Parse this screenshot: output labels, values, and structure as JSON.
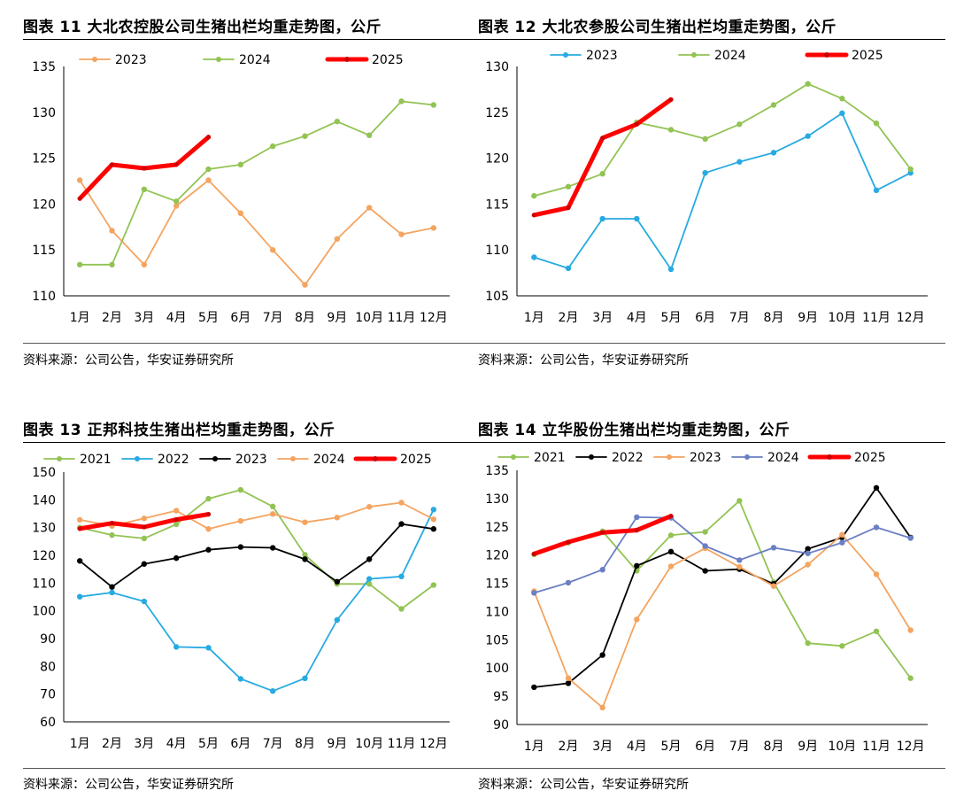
{
  "charts": [
    {
      "title": "图表 11 大北农控股公司生猪出栏均重走势图，公斤",
      "source": "资料来源：公司公告，华安证券研究所",
      "chart_data": {
        "type": "line",
        "categories": [
          "1月",
          "2月",
          "3月",
          "4月",
          "5月",
          "6月",
          "7月",
          "8月",
          "9月",
          "10月",
          "11月",
          "12月"
        ],
        "ylim": [
          110,
          135
        ],
        "ystep": 5,
        "series": [
          {
            "name": "2023",
            "color": "#f4a460",
            "bold": false,
            "values": [
              122.6,
              117.1,
              113.4,
              119.8,
              122.6,
              119.0,
              115.0,
              111.2,
              116.2,
              119.6,
              116.7,
              117.4
            ]
          },
          {
            "name": "2024",
            "color": "#92c353",
            "bold": false,
            "values": [
              113.4,
              113.4,
              121.6,
              120.3,
              123.8,
              124.3,
              126.3,
              127.4,
              129.0,
              127.5,
              131.2,
              130.8
            ]
          },
          {
            "name": "2025",
            "color": "#ff0000",
            "bold": true,
            "values": [
              120.6,
              124.3,
              123.9,
              124.3,
              127.3,
              null,
              null,
              null,
              null,
              null,
              null,
              null
            ]
          }
        ]
      }
    },
    {
      "title": "图表 12 大北农参股公司生猪出栏均重走势图，公斤",
      "source": "资料来源：公司公告，华安证券研究所",
      "chart_data": {
        "type": "line",
        "categories": [
          "1月",
          "2月",
          "3月",
          "4月",
          "5月",
          "6月",
          "7月",
          "8月",
          "9月",
          "10月",
          "11月",
          "12月"
        ],
        "ylim": [
          105,
          130
        ],
        "ystep": 5,
        "series": [
          {
            "name": "2023",
            "color": "#27aae1",
            "bold": false,
            "values": [
              109.2,
              108.0,
              113.4,
              113.4,
              107.9,
              118.4,
              119.6,
              120.6,
              122.4,
              124.9,
              116.5,
              118.4
            ]
          },
          {
            "name": "2024",
            "color": "#92c353",
            "bold": false,
            "values": [
              115.9,
              116.9,
              118.3,
              123.9,
              123.1,
              122.1,
              123.7,
              125.8,
              128.1,
              126.5,
              123.8,
              118.8
            ]
          },
          {
            "name": "2025",
            "color": "#ff0000",
            "bold": true,
            "values": [
              113.8,
              114.6,
              122.2,
              123.7,
              126.4,
              null,
              null,
              null,
              null,
              null,
              null,
              null
            ]
          }
        ]
      }
    },
    {
      "title": "图表 13 正邦科技生猪出栏均重走势图，公斤",
      "source": "资料来源：公司公告，华安证券研究所",
      "chart_data": {
        "type": "line",
        "categories": [
          "1月",
          "2月",
          "3月",
          "4月",
          "5月",
          "6月",
          "7月",
          "8月",
          "9月",
          "10月",
          "11月",
          "12月"
        ],
        "ylim": [
          60,
          150
        ],
        "ystep": 10,
        "series": [
          {
            "name": "2021",
            "color": "#92c353",
            "bold": false,
            "values": [
              130.0,
              127.3,
              126.1,
              131.2,
              140.4,
              143.6,
              137.6,
              120.2,
              109.7,
              109.7,
              100.7,
              109.3
            ]
          },
          {
            "name": "2022",
            "color": "#27aae1",
            "bold": false,
            "values": [
              105.1,
              106.6,
              103.4,
              87.0,
              86.7,
              75.5,
              71.1,
              75.7,
              96.7,
              111.5,
              112.4,
              136.5
            ]
          },
          {
            "name": "2023",
            "color": "#000000",
            "bold": false,
            "values": [
              118.0,
              108.6,
              116.9,
              119.0,
              122.0,
              123.0,
              122.7,
              118.6,
              110.5,
              118.6,
              131.3,
              129.5
            ]
          },
          {
            "name": "2024",
            "color": "#f4a460",
            "bold": false,
            "values": [
              132.8,
              130.6,
              133.3,
              136.1,
              129.5,
              132.4,
              134.9,
              131.9,
              133.6,
              137.5,
              139.0,
              133.0
            ]
          },
          {
            "name": "2025",
            "color": "#ff0000",
            "bold": true,
            "values": [
              129.6,
              131.6,
              130.2,
              132.9,
              134.8,
              null,
              null,
              null,
              null,
              null,
              null,
              null
            ]
          }
        ]
      }
    },
    {
      "title": "图表 14 立华股份生猪出栏均重走势图，公斤",
      "source": "资料来源：公司公告，华安证券研究所",
      "chart_data": {
        "type": "line",
        "categories": [
          "1月",
          "2月",
          "3月",
          "4月",
          "5月",
          "6月",
          "7月",
          "8月",
          "9月",
          "10月",
          "11月",
          "12月"
        ],
        "ylim": [
          90,
          135
        ],
        "ystep": 5,
        "series": [
          {
            "name": "2021",
            "color": "#92c353",
            "bold": false,
            "values": [
              120.1,
              122.2,
              124.2,
              117.2,
              123.5,
              124.1,
              129.6,
              115.2,
              104.4,
              103.9,
              106.5,
              98.2
            ]
          },
          {
            "name": "2022",
            "color": "#000000",
            "bold": false,
            "values": [
              96.6,
              97.3,
              102.3,
              118.1,
              120.6,
              117.2,
              117.5,
              114.9,
              121.1,
              123.1,
              131.9,
              123.1
            ]
          },
          {
            "name": "2023",
            "color": "#f4a460",
            "bold": false,
            "values": [
              113.6,
              98.2,
              93.0,
              108.6,
              118.0,
              121.2,
              117.9,
              114.5,
              118.3,
              123.6,
              116.6,
              106.7
            ]
          },
          {
            "name": "2024",
            "color": "#6b7fc4",
            "bold": false,
            "values": [
              113.3,
              115.1,
              117.4,
              126.7,
              126.6,
              121.6,
              119.1,
              121.3,
              120.3,
              122.2,
              124.9,
              123.0
            ]
          },
          {
            "name": "2025",
            "color": "#ff0000",
            "bold": true,
            "values": [
              120.2,
              122.3,
              124.0,
              124.4,
              126.9,
              null,
              null,
              null,
              null,
              null,
              null,
              null
            ]
          }
        ]
      }
    }
  ]
}
